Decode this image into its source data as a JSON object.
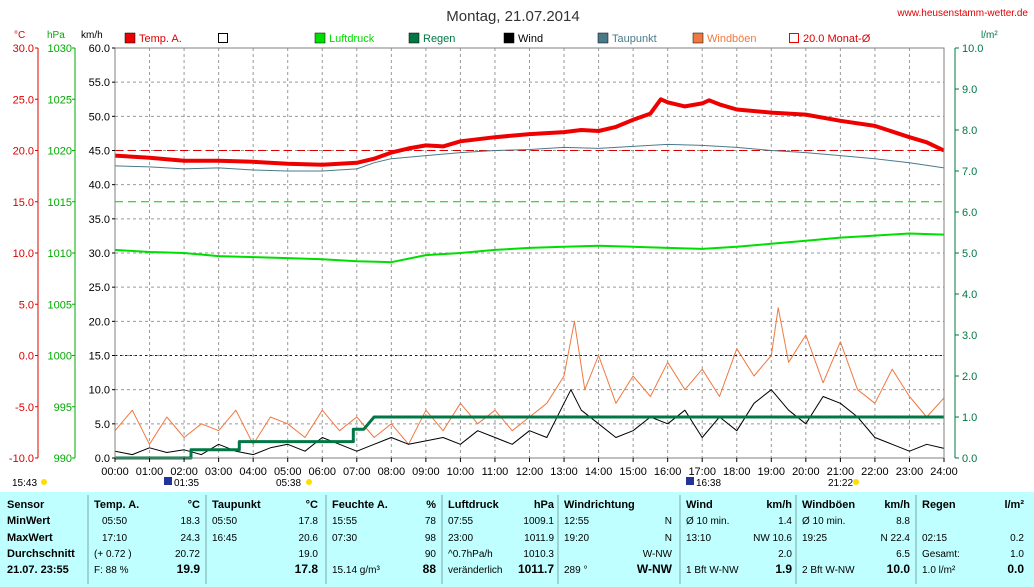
{
  "header": {
    "title": "Montag, 21.07.2014",
    "site": "www.heusenstamm-wetter.de"
  },
  "chart_data": {
    "type": "line",
    "title": "Montag, 21.07.2014",
    "x_ticks": [
      "00:00",
      "01:00",
      "02:00",
      "03:00",
      "04:00",
      "05:00",
      "06:00",
      "07:00",
      "08:00",
      "09:00",
      "10:00",
      "11:00",
      "12:00",
      "13:00",
      "14:00",
      "15:00",
      "16:00",
      "17:00",
      "18:00",
      "19:00",
      "20:00",
      "21:00",
      "22:00",
      "23:00",
      "24:00"
    ],
    "xlim": [
      0,
      24
    ],
    "grid": true,
    "axes": {
      "temp": {
        "unit": "°C",
        "range": [
          -10,
          30
        ],
        "ticks": [
          "30.0",
          "25.0",
          "20.0",
          "15.0",
          "10.0",
          "5.0",
          "0.0",
          "-5.0",
          "-10.0"
        ],
        "color": "#dd0000"
      },
      "pressure": {
        "unit": "hPa",
        "range": [
          990,
          1030
        ],
        "ticks": [
          "1030",
          "1025",
          "1020",
          "1015",
          "1010",
          "1005",
          "1000",
          "995",
          "990"
        ],
        "color": "#00aa00"
      },
      "wind": {
        "unit": "km/h",
        "range": [
          0,
          60
        ],
        "ticks": [
          "60.0",
          "55.0",
          "50.0",
          "45.0",
          "40.0",
          "35.0",
          "30.0",
          "25.0",
          "20.0",
          "15.0",
          "10.0",
          "5.0",
          "0.0"
        ],
        "color": "#000000"
      },
      "rain": {
        "unit": "l/m²",
        "range": [
          0,
          10
        ],
        "ticks": [
          "10.0",
          "9.0",
          "8.0",
          "7.0",
          "6.0",
          "5.0",
          "4.0",
          "3.0",
          "2.0",
          "1.0",
          "0.0"
        ],
        "color": "#007744"
      }
    },
    "legend": [
      {
        "name": "Temp. A.",
        "color": "#ee0000",
        "style": "filled"
      },
      {
        "name": "",
        "color": "#000000",
        "style": "open"
      },
      {
        "name": "Luftdruck",
        "color": "#00dd00",
        "style": "filled"
      },
      {
        "name": "Regen",
        "color": "#007744",
        "style": "filled"
      },
      {
        "name": "Wind",
        "color": "#000000",
        "style": "filled"
      },
      {
        "name": "Taupunkt",
        "color": "#4a7a8a",
        "style": "filled"
      },
      {
        "name": "Windböen",
        "color": "#f07840",
        "style": "filled"
      },
      {
        "name": "20.0 Monat-Ø",
        "color": "#ee0000",
        "style": "open"
      }
    ],
    "reference_lines": [
      {
        "axis": "temp",
        "value": 20,
        "color": "#dd0000",
        "style": "dashed"
      },
      {
        "axis": "pressure",
        "value": 1015,
        "color": "#00cc00",
        "style": "dashed"
      },
      {
        "axis": "temp",
        "value": 0,
        "color": "#0000ee",
        "style": "dotted"
      }
    ],
    "series": [
      {
        "name": "Temp. A.",
        "axis": "temp",
        "color": "#ee0000",
        "width": 4,
        "x": [
          0,
          1,
          2,
          3,
          4,
          5,
          6,
          7,
          7.5,
          8,
          8.5,
          9,
          9.5,
          10,
          11,
          12,
          13,
          13.5,
          14,
          14.5,
          15,
          15.5,
          15.8,
          16,
          16.5,
          17,
          17.2,
          17.5,
          18,
          19,
          20,
          21,
          22,
          23,
          23.5,
          24
        ],
        "y": [
          19.5,
          19.3,
          19.0,
          19.0,
          18.9,
          18.7,
          18.6,
          18.8,
          19.2,
          19.8,
          20.2,
          20.5,
          20.4,
          20.9,
          21.3,
          21.6,
          21.8,
          22.0,
          21.9,
          22.3,
          23.0,
          23.6,
          25.0,
          24.7,
          24.3,
          24.6,
          24.9,
          24.5,
          24.0,
          23.7,
          23.5,
          22.9,
          22.4,
          21.3,
          20.8,
          20.0
        ]
      },
      {
        "name": "Taupunkt",
        "axis": "temp",
        "color": "#4a7a8a",
        "width": 1,
        "x": [
          0,
          1,
          2,
          3,
          4,
          5,
          6,
          7,
          7.5,
          8,
          9,
          10,
          11,
          12,
          13,
          14,
          15,
          16,
          17,
          18,
          19,
          20,
          21,
          22,
          23,
          24
        ],
        "y": [
          18.5,
          18.4,
          18.2,
          18.3,
          18.1,
          18.0,
          18.0,
          18.2,
          18.8,
          19.2,
          19.5,
          19.8,
          20.0,
          20.1,
          20.3,
          20.2,
          20.4,
          20.6,
          20.5,
          20.3,
          20.0,
          19.8,
          19.5,
          19.2,
          18.8,
          18.3
        ]
      },
      {
        "name": "Luftdruck",
        "axis": "pressure",
        "color": "#00dd00",
        "width": 2,
        "x": [
          0,
          1,
          2,
          3,
          4,
          5,
          6,
          7,
          8,
          9,
          10,
          11,
          12,
          13,
          14,
          15,
          16,
          17,
          18,
          19,
          20,
          21,
          22,
          23,
          24
        ],
        "y": [
          1010.3,
          1010.1,
          1010.0,
          1009.7,
          1009.6,
          1009.5,
          1009.4,
          1009.2,
          1009.1,
          1009.8,
          1010.0,
          1010.3,
          1010.5,
          1010.6,
          1010.7,
          1010.6,
          1010.5,
          1010.4,
          1010.6,
          1010.9,
          1011.2,
          1011.5,
          1011.7,
          1011.9,
          1011.8
        ]
      },
      {
        "name": "Regen",
        "axis": "rain",
        "color": "#007744",
        "width": 3,
        "x": [
          0,
          2.2,
          2.2,
          3.6,
          3.6,
          6.9,
          6.9,
          7.2,
          7.5,
          7.5,
          24
        ],
        "y": [
          0,
          0,
          0.2,
          0.2,
          0.4,
          0.4,
          0.7,
          0.7,
          1.0,
          1.0,
          1.0
        ]
      },
      {
        "name": "Wind",
        "axis": "wind",
        "color": "#000000",
        "width": 1,
        "x": [
          0,
          0.5,
          1,
          1.5,
          2,
          2.5,
          3,
          3.5,
          4,
          4.5,
          5,
          5.5,
          6,
          6.5,
          7,
          7.5,
          8,
          8.5,
          9,
          9.5,
          10,
          10.5,
          11,
          11.5,
          12,
          12.5,
          13,
          13.2,
          13.5,
          14,
          14.5,
          15,
          15.5,
          16,
          16.5,
          17,
          17.5,
          18,
          18.5,
          19,
          19.5,
          20,
          20.5,
          21,
          21.5,
          22,
          22.5,
          23,
          23.5,
          24
        ],
        "y": [
          1,
          0.5,
          1.5,
          0.8,
          1.2,
          0.5,
          2,
          1,
          0.5,
          1.5,
          2,
          1,
          3,
          2,
          1,
          2,
          3,
          2,
          2.5,
          3,
          2,
          4,
          3,
          2,
          4,
          3,
          8,
          10,
          7,
          5,
          3,
          4,
          6,
          5,
          7,
          3,
          6,
          4,
          8,
          10,
          7,
          5,
          9,
          8,
          6,
          3,
          2,
          1,
          2,
          1.4
        ]
      },
      {
        "name": "Windböen",
        "axis": "wind",
        "color": "#f07840",
        "width": 1,
        "x": [
          0,
          0.5,
          1,
          1.5,
          2,
          2.5,
          3,
          3.5,
          4,
          4.5,
          5,
          5.5,
          6,
          6.5,
          7,
          7.5,
          8,
          8.5,
          9,
          9.5,
          10,
          10.5,
          11,
          11.5,
          12,
          12.5,
          13,
          13.3,
          13.6,
          14,
          14.5,
          15,
          15.5,
          16,
          16.5,
          17,
          17.5,
          18,
          18.5,
          19,
          19.2,
          19.5,
          20,
          20.5,
          21,
          21.5,
          22,
          22.5,
          23,
          23.5,
          24
        ],
        "y": [
          4,
          7,
          2,
          6,
          3,
          5,
          4,
          7,
          2,
          6,
          5,
          3,
          7,
          4,
          6,
          3,
          5,
          2,
          7,
          4,
          8,
          5,
          7,
          4,
          6,
          8,
          12,
          20,
          10,
          15,
          8,
          12,
          9,
          14,
          10,
          13,
          9,
          16,
          12,
          15,
          22,
          14,
          18,
          11,
          17,
          10,
          8,
          13,
          9,
          6,
          8.8
        ]
      }
    ]
  },
  "labels": {
    "sunrise": "05:38",
    "sunset": "21:22",
    "moonrise": "01:35",
    "moonset": "16:38",
    "time_left": "15:43"
  },
  "table": {
    "rows_labels": [
      "Sensor",
      "MinWert",
      "MaxWert",
      "Durchschnitt",
      "21.07. 23:55"
    ],
    "columns": [
      {
        "title": "Temp. A.",
        "unit": "°C",
        "cells": [
          [
            "05:50",
            "18.3"
          ],
          [
            "17:10",
            "24.3"
          ],
          [
            "(+ 0.72 )",
            "20.72"
          ],
          [
            "F: 88 %",
            "19.9"
          ]
        ]
      },
      {
        "title": "Taupunkt",
        "unit": "°C",
        "cells": [
          [
            "05:50",
            "17.8"
          ],
          [
            "16:45",
            "20.6"
          ],
          [
            "",
            "19.0"
          ],
          [
            "",
            "17.8"
          ]
        ]
      },
      {
        "title": "Feuchte A.",
        "unit": "%",
        "cells": [
          [
            "15:55",
            "78"
          ],
          [
            "07:30",
            "98"
          ],
          [
            "",
            "90"
          ],
          [
            "15.14 g/m³",
            "88"
          ]
        ]
      },
      {
        "title": "Luftdruck",
        "unit": "hPa",
        "cells": [
          [
            "07:55",
            "1009.1"
          ],
          [
            "23:00",
            "1011.9"
          ],
          [
            "^0.7hPa/h",
            "1010.3"
          ],
          [
            "veränderlich",
            "1011.7"
          ]
        ]
      },
      {
        "title": "Windrichtung",
        "unit": "",
        "cells": [
          [
            "12:55",
            "N"
          ],
          [
            "19:20",
            "N"
          ],
          [
            "",
            "W-NW"
          ],
          [
            "289 °",
            "W-NW"
          ]
        ]
      },
      {
        "title": "Wind",
        "unit": "km/h",
        "cells": [
          [
            "Ø 10 min.",
            "1.4"
          ],
          [
            "13:10",
            "NW 10.6"
          ],
          [
            "",
            "2.0"
          ],
          [
            "1 Bft W-NW",
            "1.9"
          ]
        ]
      },
      {
        "title": "Windböen",
        "unit": "km/h",
        "cells": [
          [
            "Ø 10 min.",
            "8.8"
          ],
          [
            "19:25",
            "N 22.4"
          ],
          [
            "",
            "6.5"
          ],
          [
            "2 Bft W-NW",
            "10.0"
          ]
        ]
      },
      {
        "title": "Regen",
        "unit": "l/m²",
        "cells": [
          [
            "",
            ""
          ],
          [
            "02:15",
            "0.2"
          ],
          [
            "Gesamt:",
            "1.0"
          ],
          [
            "1.0 l/m²",
            "0.0"
          ]
        ]
      }
    ]
  }
}
